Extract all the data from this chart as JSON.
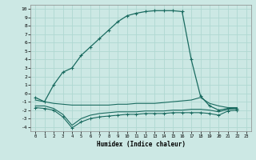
{
  "xlabel": "Humidex (Indice chaleur)",
  "bg_color": "#cce8e4",
  "grid_color": "#b0d8d2",
  "line_color": "#1a6b60",
  "xlim": [
    -0.5,
    23.5
  ],
  "ylim": [
    -4.5,
    10.5
  ],
  "xticks": [
    0,
    1,
    2,
    3,
    4,
    5,
    6,
    7,
    8,
    9,
    10,
    11,
    12,
    13,
    14,
    15,
    16,
    17,
    18,
    19,
    20,
    21,
    22,
    23
  ],
  "yticks": [
    -4,
    -3,
    -2,
    -1,
    0,
    1,
    2,
    3,
    4,
    5,
    6,
    7,
    8,
    9,
    10
  ],
  "curve1_x": [
    0,
    1,
    2,
    3,
    4,
    5,
    6,
    7,
    8,
    9,
    10,
    11,
    12,
    13,
    14,
    15,
    16,
    17,
    18,
    19,
    20,
    21,
    22
  ],
  "curve1_y": [
    -0.5,
    -1.0,
    1.0,
    2.5,
    3.0,
    4.5,
    5.5,
    6.5,
    7.5,
    8.5,
    9.2,
    9.5,
    9.7,
    9.8,
    9.8,
    9.8,
    9.7,
    4.0,
    -0.3,
    -1.5,
    -2.0,
    -1.8,
    -1.8
  ],
  "curve2_x": [
    0,
    1,
    2,
    3,
    4,
    5,
    6,
    7,
    8,
    9,
    10,
    11,
    12,
    13,
    14,
    15,
    16,
    17,
    18,
    19,
    20,
    21,
    22
  ],
  "curve2_y": [
    -0.8,
    -1.0,
    -1.2,
    -1.3,
    -1.4,
    -1.4,
    -1.4,
    -1.4,
    -1.4,
    -1.3,
    -1.3,
    -1.2,
    -1.2,
    -1.2,
    -1.1,
    -1.0,
    -0.9,
    -0.8,
    -0.5,
    -1.2,
    -1.5,
    -1.7,
    -1.7
  ],
  "curve3_x": [
    0,
    1,
    2,
    3,
    4,
    5,
    6,
    7,
    8,
    9,
    10,
    11,
    12,
    13,
    14,
    15,
    16,
    17,
    18,
    19,
    20,
    21,
    22
  ],
  "curve3_y": [
    -1.5,
    -1.5,
    -1.8,
    -2.5,
    -3.8,
    -3.0,
    -2.6,
    -2.4,
    -2.3,
    -2.2,
    -2.2,
    -2.2,
    -2.1,
    -2.1,
    -2.1,
    -2.0,
    -2.0,
    -1.9,
    -1.9,
    -2.0,
    -2.2,
    -1.9,
    -1.8
  ],
  "curve4_x": [
    0,
    1,
    2,
    3,
    4,
    5,
    6,
    7,
    8,
    9,
    10,
    11,
    12,
    13,
    14,
    15,
    16,
    17,
    18,
    19,
    20,
    21,
    22
  ],
  "curve4_y": [
    -1.7,
    -1.8,
    -2.0,
    -2.8,
    -4.1,
    -3.4,
    -3.0,
    -2.8,
    -2.7,
    -2.6,
    -2.5,
    -2.5,
    -2.4,
    -2.4,
    -2.4,
    -2.3,
    -2.3,
    -2.3,
    -2.3,
    -2.4,
    -2.6,
    -2.1,
    -2.0
  ]
}
